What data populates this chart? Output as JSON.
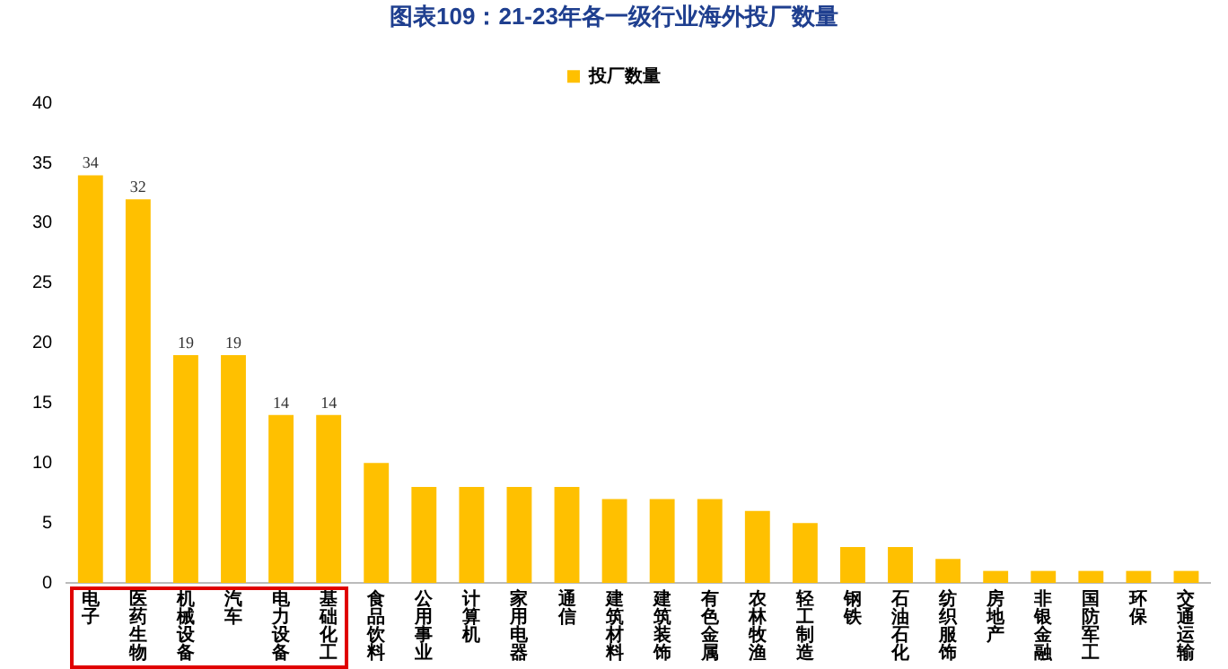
{
  "chart_data": {
    "type": "bar",
    "title": "图表109：21-23年各一级行业海外投厂数量",
    "categories": [
      "电子",
      "医药生物",
      "机械设备",
      "汽车",
      "电力设备",
      "基础化工",
      "食品饮料",
      "公用事业",
      "计算机",
      "家用电器",
      "通信",
      "建筑材料",
      "建筑装饰",
      "有色金属",
      "农林牧渔",
      "轻工制造",
      "钢铁",
      "石油石化",
      "纺织服饰",
      "房地产",
      "非银金融",
      "国防军工",
      "环保",
      "交通运输"
    ],
    "series": [
      {
        "name": "投厂数量",
        "color": "#ffc000",
        "values": [
          34,
          32,
          19,
          19,
          14,
          14,
          10,
          8,
          8,
          8,
          8,
          7,
          7,
          7,
          6,
          5,
          3,
          3,
          2,
          1,
          1,
          1,
          1,
          1
        ],
        "value_labels": [
          "34",
          "32",
          "19",
          "19",
          "14",
          "14",
          null,
          null,
          null,
          null,
          null,
          null,
          null,
          null,
          null,
          null,
          null,
          null,
          null,
          null,
          null,
          null,
          null,
          null
        ]
      }
    ],
    "ylim": [
      0,
      40
    ],
    "yticks": [
      0,
      5,
      10,
      15,
      20,
      25,
      30,
      35,
      40
    ],
    "grid": false,
    "legend": "top"
  }
}
